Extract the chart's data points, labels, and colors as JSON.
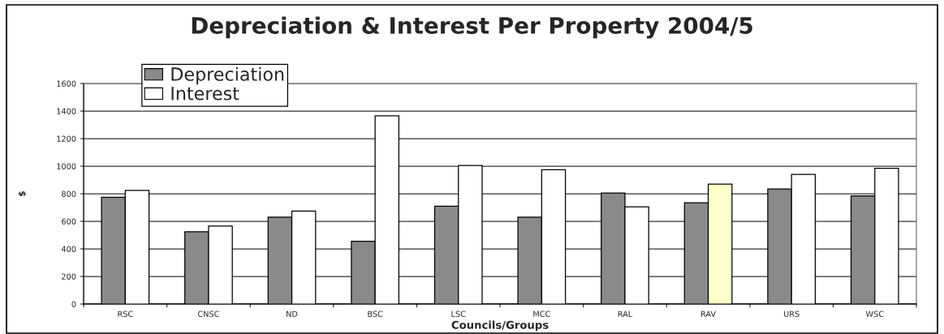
{
  "chart_data": {
    "type": "bar",
    "title": "Depreciation & Interest Per Property 2004/5",
    "xlabel": "Councils/Groups",
    "ylabel": "$",
    "categories": [
      "RSC",
      "CNSC",
      "ND",
      "BSC",
      "LSC",
      "MCC",
      "RAL",
      "RAV",
      "URS",
      "WSC"
    ],
    "series": [
      {
        "name": "Depreciation",
        "color": "#8a8a8a",
        "values": [
          775,
          525,
          630,
          455,
          710,
          630,
          805,
          735,
          835,
          785
        ]
      },
      {
        "name": "Interest",
        "color": "#ffffff",
        "colors": [
          "#ffffff",
          "#ffffff",
          "#ffffff",
          "#ffffff",
          "#ffffff",
          "#ffffff",
          "#ffffff",
          "#ffffcc",
          "#ffffff",
          "#ffffff"
        ],
        "values": [
          825,
          565,
          675,
          1365,
          1005,
          975,
          705,
          870,
          940,
          985
        ]
      }
    ],
    "ylim": [
      0,
      1600
    ],
    "yticks": [
      0,
      200,
      400,
      600,
      800,
      1000,
      1200,
      1400,
      1600
    ],
    "grid": "y",
    "legend": "top left"
  }
}
